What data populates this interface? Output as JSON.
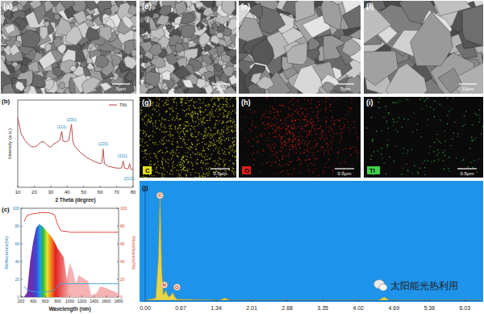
{
  "panels": [
    {
      "label": "(a)",
      "scale_bar": "5μm"
    },
    {
      "label": "(d)",
      "scale_bar": "2μm"
    },
    {
      "label": "(e)",
      "scale_bar": "5μm"
    },
    {
      "label": "(f)",
      "scale_bar": "10μm"
    }
  ],
  "maps": [
    {
      "label": "(g)",
      "element": "C",
      "color": "#e6e21a",
      "scale_bar": "0.5μm"
    },
    {
      "label": "(h)",
      "element": "O",
      "color": "#e0201c",
      "scale_bar": "0.5μm"
    },
    {
      "label": "(i)",
      "element": "Ti",
      "color": "#3fd24a",
      "scale_bar": "0.5μm"
    }
  ],
  "chart_data": [
    {
      "label": "(b)",
      "type": "line",
      "x_label": "2 Theta (degree)",
      "y_label": "Intensity (a.u.)",
      "x": [
        10,
        12,
        14,
        16,
        18,
        20,
        22,
        24,
        26,
        28,
        30,
        32,
        34,
        35.5,
        36.7,
        37.5,
        39,
        41,
        42.6,
        43.5,
        45,
        48,
        52,
        56,
        60,
        61,
        61.8,
        62.6,
        65,
        70,
        73,
        74,
        74.8,
        77,
        77.9,
        78.6,
        80
      ],
      "series": [
        {
          "name": "TiN",
          "color": "#b03a3a",
          "values": [
            80,
            62,
            55,
            50,
            47,
            46,
            48,
            52,
            52,
            48,
            46,
            50,
            52,
            54,
            64,
            53,
            52,
            54,
            72,
            52,
            46,
            40,
            34,
            30,
            27,
            28,
            44,
            27,
            24,
            22,
            22,
            30,
            22,
            21,
            27,
            21,
            20
          ]
        }
      ],
      "xlim": [
        10,
        80
      ],
      "xticks": [
        10,
        20,
        30,
        40,
        50,
        60,
        70,
        80
      ],
      "ylim": [
        0,
        100
      ],
      "tick_labels": "x",
      "legend": "top-right",
      "annotations": [
        {
          "x": 36.7,
          "y": 68,
          "text": "(111)"
        },
        {
          "x": 42.6,
          "y": 76,
          "text": "(200)"
        },
        {
          "x": 61.8,
          "y": 48,
          "text": "(220)"
        },
        {
          "x": 73.5,
          "y": 34,
          "text": "(311)"
        },
        {
          "x": 77.5,
          "y": 8,
          "text": "(222)"
        }
      ]
    },
    {
      "label": "(c)",
      "type": "line",
      "x_label": "Wavelength (nm)",
      "y_label": "Reflectance(%)",
      "y2_label": "Absorbance(%)",
      "x": [
        250,
        300,
        350,
        400,
        450,
        500,
        550,
        600,
        650,
        700,
        750,
        800,
        850,
        900,
        950,
        1000,
        1050,
        1100,
        1150,
        1200,
        1300,
        1350,
        1400,
        1450,
        1500,
        1600,
        1700,
        1800
      ],
      "series": [
        {
          "type": "area",
          "axis": "y2",
          "color": "#f5b3b3",
          "values": [
            0,
            5,
            40,
            62,
            78,
            82,
            80,
            76,
            72,
            68,
            62,
            55,
            50,
            45,
            20,
            38,
            30,
            15,
            25,
            22,
            18,
            2,
            3,
            5,
            12,
            10,
            7,
            4
          ]
        },
        {
          "type": "line",
          "color": "#3aa0d8",
          "values": [
            12,
            8,
            7,
            6,
            6,
            5,
            5,
            6,
            6,
            7,
            8,
            13,
            15,
            15,
            15,
            15,
            15,
            15,
            15,
            15,
            15,
            15,
            15,
            15,
            15,
            15,
            15,
            15
          ]
        },
        {
          "type": "line",
          "axis": "y2",
          "color": "#e8332a",
          "values": [
            85,
            92,
            93,
            94,
            94,
            95,
            95,
            95,
            95,
            94,
            93,
            82,
            75,
            74,
            74,
            73,
            73,
            73,
            73,
            73,
            73,
            73,
            73,
            73,
            73,
            73,
            73,
            73
          ]
        }
      ],
      "xlim": [
        200,
        1800
      ],
      "xticks": [
        200,
        400,
        600,
        800,
        1000,
        1200,
        1400,
        1600,
        1800
      ],
      "ylim": [
        0,
        100
      ],
      "yticks": [
        0,
        20,
        40,
        60,
        80,
        100
      ],
      "y2lim": [
        0,
        100
      ],
      "y2ticks": [
        0,
        20,
        40,
        60,
        80,
        100
      ]
    },
    {
      "label": "(j)",
      "type": "area",
      "color": "#e8d44d",
      "x": [
        0,
        0.2,
        0.25,
        0.28,
        0.31,
        0.34,
        0.37,
        0.39,
        0.42,
        0.45,
        0.49,
        0.52,
        0.56,
        0.6,
        1.4,
        1.5,
        1.6,
        4.4,
        4.51,
        4.6,
        6.33
      ],
      "values": [
        0,
        2,
        40,
        100,
        30,
        5,
        7,
        9,
        5,
        3,
        5,
        7,
        3,
        1,
        0,
        2,
        0,
        0,
        3,
        0,
        0
      ],
      "xlim": [
        0,
        6.33
      ],
      "xticks": [
        {
          "value": 0,
          "label": "0.00"
        },
        0.67,
        1.34,
        2.01,
        2.68,
        3.35,
        4.02,
        4.69,
        5.36,
        6.03
      ],
      "ylim": [
        0,
        105
      ],
      "tick_labels": "x",
      "annotations": [
        {
          "x": 0.28,
          "y": 96,
          "text": "C"
        },
        {
          "x": 0.36,
          "y": 14,
          "text": "N"
        },
        {
          "x": 0.6,
          "y": 12,
          "text": "O"
        }
      ]
    }
  ],
  "watermark": "太阳能光热利用"
}
